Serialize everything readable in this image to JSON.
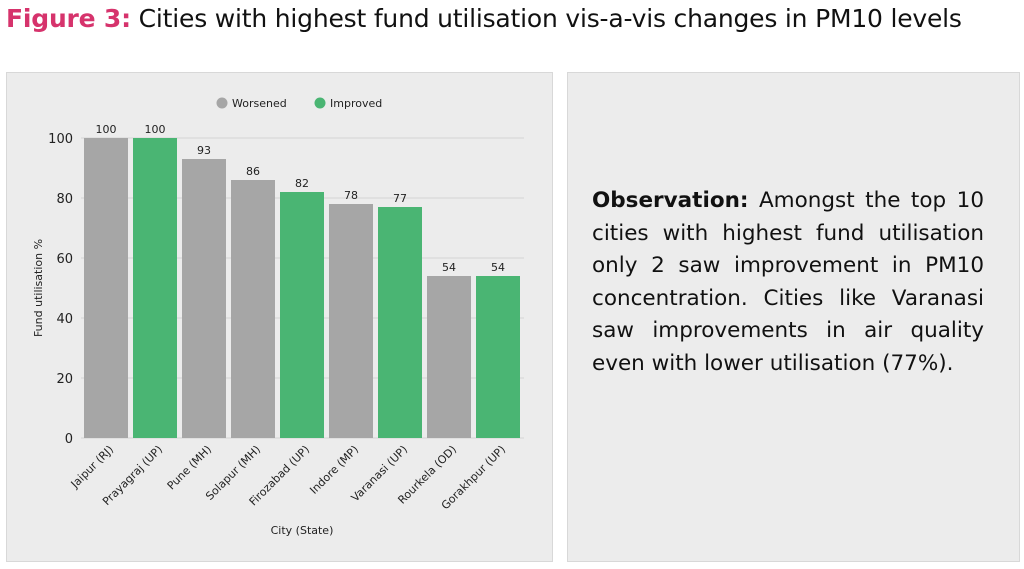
{
  "title": {
    "prefix": "Figure 3:",
    "text": " Cities with highest fund utilisation vis-a-vis changes in PM10 levels"
  },
  "observation": {
    "label": "Observation:",
    "text": " Amongst the top 10 cities with highest fund utilisation only 2 saw improvement in PM10 concentration. Cities like Varanasi saw improvements in air quality even with lower utilisation (77%)."
  },
  "colors": {
    "Worsened": "#a6a6a6",
    "Improved": "#4ab573",
    "accent": "#d6336c"
  },
  "chart_data": {
    "type": "bar",
    "categories": [
      "Jaipur (RJ)",
      "Prayagraj (UP)",
      "Pune (MH)",
      "Solapur (MH)",
      "Firozabad (UP)",
      "Indore (MP)",
      "Varanasi (UP)",
      "Rourkela (OD)",
      "Gorakhpur (UP)"
    ],
    "values": [
      100,
      100,
      93,
      86,
      82,
      78,
      77,
      54,
      54
    ],
    "status": [
      "Worsened",
      "Improved",
      "Worsened",
      "Worsened",
      "Improved",
      "Worsened",
      "Improved",
      "Worsened",
      "Improved"
    ],
    "legend": [
      "Worsened",
      "Improved"
    ],
    "legend_position": "top",
    "xlabel": "City (State)",
    "ylabel": "Fund utilisation %",
    "ylim": [
      0,
      100
    ],
    "yticks": [
      0,
      20,
      40,
      60,
      80,
      100
    ],
    "grid": true
  }
}
